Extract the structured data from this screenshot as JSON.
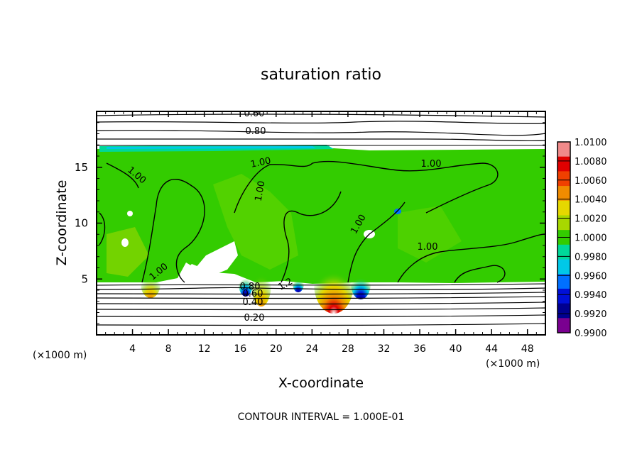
{
  "chart_data": {
    "type": "heatmap",
    "title": "saturation ratio",
    "xlabel": "X-coordinate",
    "ylabel": "Z-coordinate",
    "x_unit_label": "(×1000 m)",
    "x_unit_label_right": "(×1000 m)",
    "xlim": [
      0,
      50
    ],
    "ylim": [
      0,
      20
    ],
    "x_ticks": [
      "4",
      "8",
      "12",
      "16",
      "20",
      "24",
      "28",
      "32",
      "36",
      "40",
      "44",
      "48"
    ],
    "y_ticks": [
      "5",
      "10",
      "15"
    ],
    "footer": "CONTOUR INTERVAL = 1.000E-01",
    "colorbar": {
      "labels": [
        "1.0100",
        "1.0080",
        "1.0060",
        "1.0040",
        "1.0020",
        "1.0000",
        "0.9980",
        "0.9960",
        "0.9940",
        "0.9920",
        "0.9900"
      ],
      "colors": [
        "#f08a8a",
        "#e00000",
        "#f04000",
        "#f08c00",
        "#e6d800",
        "#a8d800",
        "#33cc00",
        "#00d899",
        "#00c8e8",
        "#0070ff",
        "#0010d8",
        "#000090",
        "#7a0090"
      ]
    },
    "contour_labels": [
      "0.60",
      "0.80",
      "1.00",
      "1.00",
      "1.00",
      "1.00",
      "1.00",
      "1.00",
      "1.00",
      "1.2",
      "0.80",
      "0.60",
      "0.40",
      "0.20"
    ]
  }
}
